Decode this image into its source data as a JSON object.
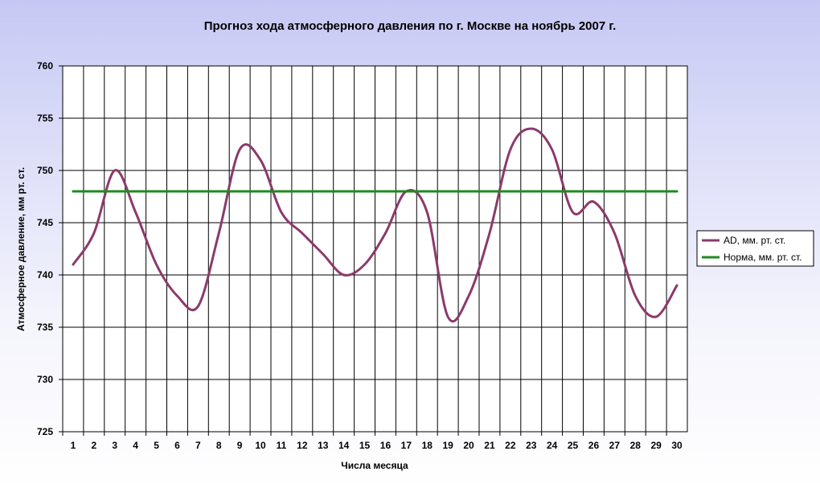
{
  "chart_data": {
    "type": "line",
    "title": "Прогноз хода атмосферного давления по г. Москве на ноябрь 2007 г.",
    "xlabel": "Числа месяца",
    "ylabel": "Атмосферное давление, мм рт. ст.",
    "x": [
      1,
      2,
      3,
      4,
      5,
      6,
      7,
      8,
      9,
      10,
      11,
      12,
      13,
      14,
      15,
      16,
      17,
      18,
      19,
      20,
      21,
      22,
      23,
      24,
      25,
      26,
      27,
      28,
      29,
      30
    ],
    "ylim": [
      725,
      760
    ],
    "yticks": [
      725,
      730,
      735,
      740,
      745,
      750,
      755,
      760
    ],
    "grid": true,
    "legend_position": "right",
    "series": [
      {
        "name": "AD, мм. рт. ст.",
        "color": "#8b3a6b",
        "values": [
          741,
          744,
          750,
          746,
          741,
          738,
          737,
          744,
          752,
          751,
          746,
          744,
          742,
          740,
          741,
          744,
          748,
          746,
          736,
          738,
          744,
          752,
          754,
          752,
          746,
          747,
          744,
          738,
          736,
          739
        ]
      },
      {
        "name": "Норма, мм. рт. ст.",
        "color": "#1f8a1f",
        "values": [
          748,
          748,
          748,
          748,
          748,
          748,
          748,
          748,
          748,
          748,
          748,
          748,
          748,
          748,
          748,
          748,
          748,
          748,
          748,
          748,
          748,
          748,
          748,
          748,
          748,
          748,
          748,
          748,
          748,
          748
        ]
      }
    ]
  }
}
